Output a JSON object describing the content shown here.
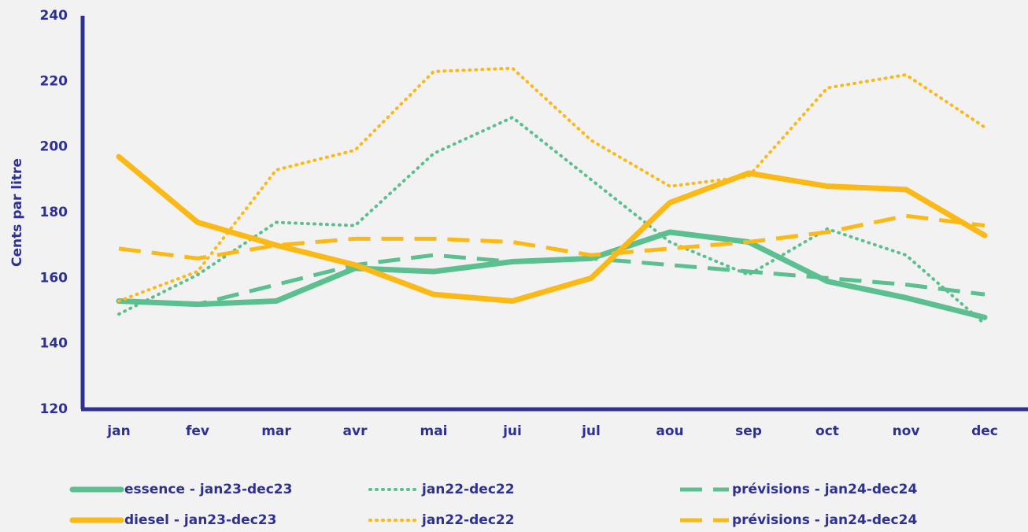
{
  "chart_data": {
    "type": "line",
    "y_label": "Cents par litre",
    "categories": [
      "jan",
      "fev",
      "mar",
      "avr",
      "mai",
      "jui",
      "jul",
      "aou",
      "sep",
      "oct",
      "nov",
      "dec"
    ],
    "ylim": [
      120,
      240
    ],
    "yticks": [
      120,
      140,
      160,
      180,
      200,
      220,
      240
    ],
    "grid": false,
    "series": [
      {
        "name": "essence - jan23-dec23",
        "color": "#5bbf8f",
        "style": "solid",
        "values": [
          153,
          152,
          153,
          163,
          162,
          165,
          166,
          174,
          171,
          159,
          154,
          148
        ]
      },
      {
        "name": "jan22-dec22",
        "color": "#5bbf8f",
        "style": "dotted",
        "values": [
          149,
          161,
          177,
          176,
          198,
          209,
          190,
          171,
          161,
          175,
          167,
          146
        ]
      },
      {
        "name": "prévisions - jan24-dec24",
        "color": "#5bbf8f",
        "style": "dashed",
        "values": [
          153,
          152,
          158,
          164,
          167,
          165,
          166,
          164,
          162,
          160,
          158,
          155
        ]
      },
      {
        "name": "diesel - jan23-dec23",
        "color": "#fbb917",
        "style": "solid",
        "values": [
          197,
          177,
          170,
          164,
          155,
          153,
          160,
          183,
          192,
          188,
          187,
          173
        ]
      },
      {
        "name": "jan22-dec22",
        "color": "#fbb917",
        "style": "dotted",
        "values": [
          153,
          162,
          193,
          199,
          223,
          224,
          202,
          188,
          191,
          218,
          222,
          206
        ]
      },
      {
        "name": "prévisions - jan24-dec24",
        "color": "#fbb917",
        "style": "dashed",
        "values": [
          169,
          166,
          170,
          172,
          172,
          171,
          167,
          169,
          171,
          174,
          179,
          176
        ]
      }
    ]
  }
}
